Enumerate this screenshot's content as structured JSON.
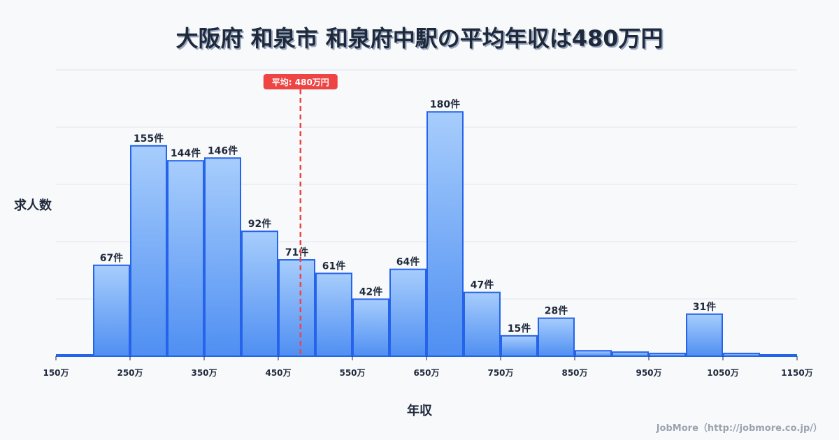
{
  "title": "大阪府 和泉市 和泉府中駅の平均年収は480万円",
  "y_axis_label": "求人数",
  "x_axis_label": "年収",
  "credit": "JobMore（http://jobmore.co.jp/）",
  "average": {
    "value": 480,
    "label": "平均: 480万円",
    "color": "#ef4444"
  },
  "colors": {
    "bar_top": "#a7cdfc",
    "bar_bottom": "#4f8ff2",
    "bar_stroke": "#2563eb",
    "grid": "#e2e5ec",
    "text": "#1e293b"
  },
  "chart_data": {
    "type": "bar",
    "title": "大阪府 和泉市 和泉府中駅の平均年収は480万円",
    "xlabel": "年収",
    "ylabel": "求人数",
    "bin_width": 50,
    "bins_start": [
      150,
      200,
      250,
      300,
      350,
      400,
      450,
      500,
      550,
      600,
      650,
      700,
      750,
      800,
      850,
      900,
      950,
      1000,
      1050,
      1100
    ],
    "categories": [
      "150-200万",
      "200-250万",
      "250-300万",
      "300-350万",
      "350-400万",
      "400-450万",
      "450-500万",
      "500-550万",
      "550-600万",
      "600-650万",
      "650-700万",
      "700-750万",
      "750-800万",
      "800-850万",
      "850-900万",
      "900-950万",
      "950-1000万",
      "1000-1050万",
      "1050-1100万",
      "1100-1150万"
    ],
    "values": [
      1,
      67,
      155,
      144,
      146,
      92,
      71,
      61,
      42,
      64,
      180,
      47,
      15,
      28,
      4,
      3,
      2,
      31,
      2,
      1
    ],
    "labels": [
      "",
      "67件",
      "155件",
      "144件",
      "146件",
      "92件",
      "71件",
      "61件",
      "42件",
      "64件",
      "180件",
      "47件",
      "15件",
      "28件",
      "",
      "",
      "",
      "31件",
      "",
      ""
    ],
    "x_ticks": [
      "150万",
      "250万",
      "350万",
      "450万",
      "550万",
      "650万",
      "750万",
      "850万",
      "950万",
      "1050万",
      "1150万"
    ],
    "x_tick_values": [
      150,
      250,
      350,
      450,
      550,
      650,
      750,
      850,
      950,
      1050,
      1150
    ],
    "xlim": [
      150,
      1150
    ],
    "ylim": [
      0,
      211
    ],
    "grid": true,
    "annotation": "平均: 480万円"
  }
}
